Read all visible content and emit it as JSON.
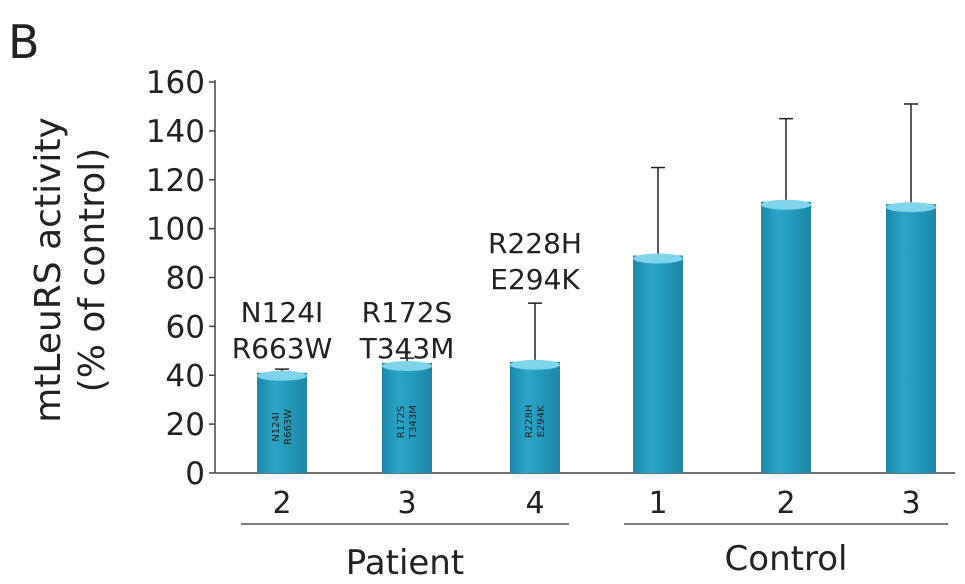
{
  "panel_label": "B",
  "chart_data": {
    "type": "bar",
    "ylabel_line1": "mtLeuRS activity",
    "ylabel_line2": "(% of control)",
    "ylim": [
      0,
      160
    ],
    "yticks": [
      "0",
      "20",
      "40",
      "60",
      "80",
      "100",
      "120",
      "140",
      "160"
    ],
    "bars": [
      {
        "category": "2",
        "group": "Patient",
        "value": 41,
        "error": 1.5,
        "label_top_1": "N124I",
        "label_top_2": "R663W",
        "label_in_1": "N124I",
        "label_in_2": "R663W"
      },
      {
        "category": "3",
        "group": "Patient",
        "value": 45,
        "error": 2,
        "label_top_1": "R172S",
        "label_top_2": "T343M",
        "label_in_1": "R172S",
        "label_in_2": "T343M"
      },
      {
        "category": "4",
        "group": "Patient",
        "value": 45.5,
        "error": 24,
        "label_top_1": "R228H",
        "label_top_2": "E294K",
        "label_in_1": "R228H",
        "label_in_2": "E294K"
      },
      {
        "category": "1",
        "group": "Control",
        "value": 89,
        "error": 36
      },
      {
        "category": "2",
        "group": "Control",
        "value": 111,
        "error": 34
      },
      {
        "category": "3",
        "group": "Control",
        "value": 110,
        "error": 41
      }
    ],
    "groups": [
      "Patient",
      "Control"
    ],
    "colors": {
      "bar": "#2ba6c9",
      "bar_light": "#7fd3ea",
      "bar_dark": "#1c87a8",
      "axis": "#444444",
      "text": "#222222"
    }
  }
}
